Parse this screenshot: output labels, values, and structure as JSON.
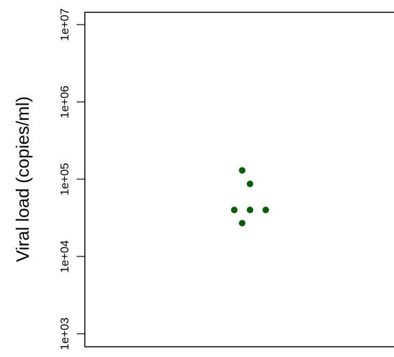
{
  "chart_data": {
    "type": "scatter",
    "title": "",
    "xlabel": "",
    "ylabel": "Viral load (copies/ml)",
    "yscale": "log",
    "ylim": [
      1000,
      10000000
    ],
    "yticks": [
      {
        "value": 1000,
        "label": "1e+03"
      },
      {
        "value": 10000,
        "label": "1e+04"
      },
      {
        "value": 100000,
        "label": "1e+05"
      },
      {
        "value": 1000000,
        "label": "1e+06"
      },
      {
        "value": 10000000,
        "label": "1e+07"
      }
    ],
    "points": [
      {
        "x": 1.0,
        "y": 130000
      },
      {
        "x": 1.05,
        "y": 87000
      },
      {
        "x": 0.95,
        "y": 40000
      },
      {
        "x": 1.05,
        "y": 40000
      },
      {
        "x": 1.15,
        "y": 40000
      },
      {
        "x": 1.0,
        "y": 27000
      }
    ],
    "xlim": [
      0,
      2
    ],
    "point_color": "#0b5a0b",
    "grid": false
  }
}
